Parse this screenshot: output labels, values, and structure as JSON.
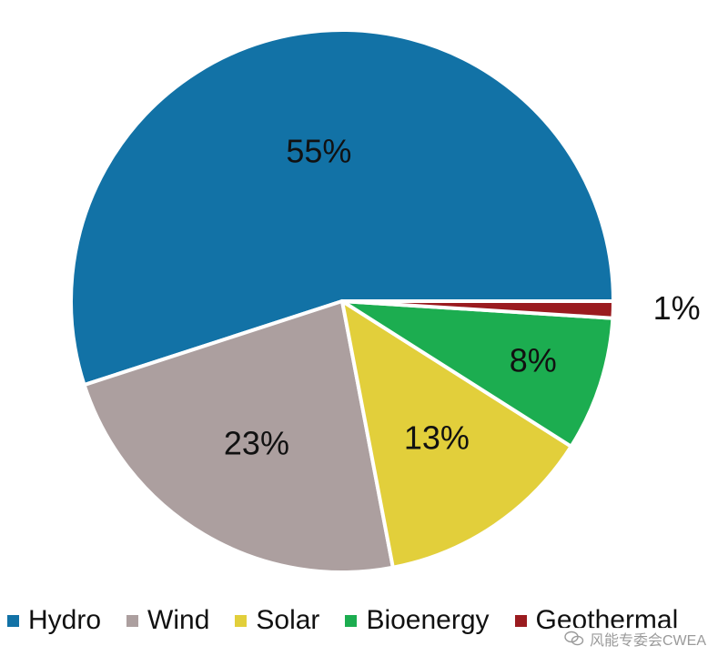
{
  "title_fragment": "",
  "chart_data": {
    "type": "pie",
    "title": "",
    "labels": [
      "Hydro",
      "Wind",
      "Solar",
      "Bioenergy",
      "Geothermal"
    ],
    "values": [
      55,
      23,
      13,
      8,
      1
    ],
    "value_labels": [
      "55%",
      "23%",
      "13%",
      "8%",
      "1%"
    ],
    "colors": [
      "#1272a6",
      "#ac9f9f",
      "#e2cf3b",
      "#1cad50",
      "#9a1b1f"
    ],
    "start_angle_deg": 0,
    "direction": "clockwise",
    "legend_position": "bottom"
  },
  "watermark": {
    "text": "风能专委会CWEA",
    "icon": "wechat-icon"
  }
}
